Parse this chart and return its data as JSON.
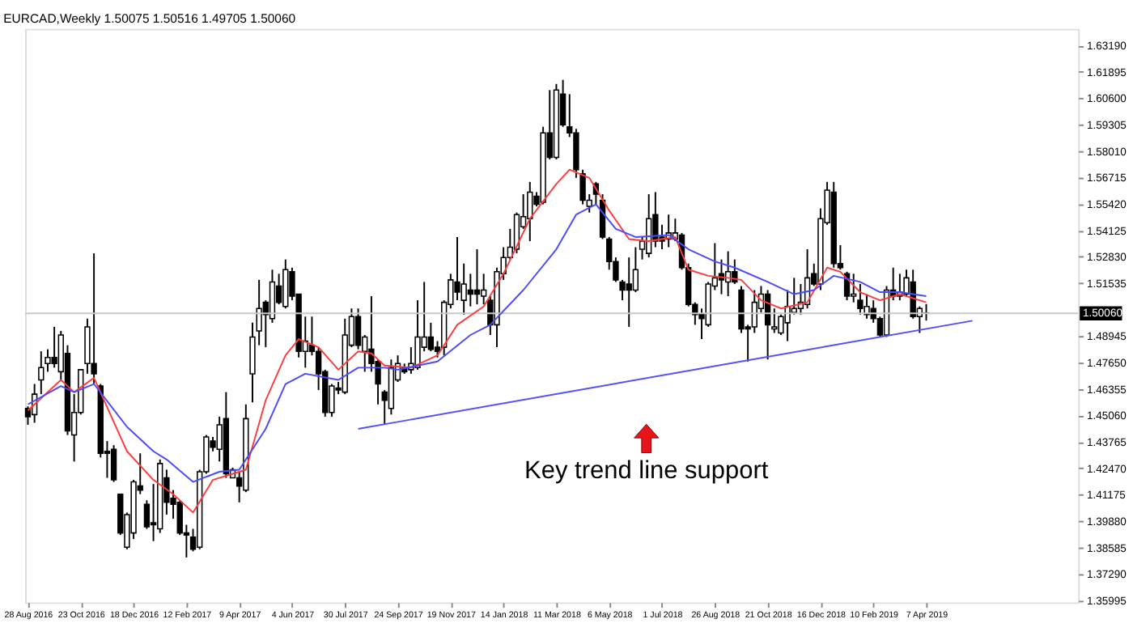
{
  "chart_data": {
    "type": "candlestick",
    "title": "EURCAD,Weekly  1.50075 1.50516 1.49705 1.50060",
    "x": [
      "2016-08-28",
      "2016-09-04",
      "2016-09-11",
      "2016-09-18",
      "2016-09-25",
      "2016-10-02",
      "2016-10-09",
      "2016-10-16",
      "2016-10-23",
      "2016-10-30",
      "2016-11-06",
      "2016-11-13",
      "2016-11-20",
      "2016-11-27",
      "2016-12-04",
      "2016-12-11",
      "2016-12-18",
      "2016-12-25",
      "2017-01-01",
      "2017-01-08",
      "2017-01-15",
      "2017-01-22",
      "2017-01-29",
      "2017-02-05",
      "2017-02-12",
      "2017-02-19",
      "2017-02-26",
      "2017-03-05",
      "2017-03-12",
      "2017-03-19",
      "2017-03-26",
      "2017-04-02",
      "2017-04-09",
      "2017-04-16",
      "2017-04-23",
      "2017-04-30",
      "2017-05-07",
      "2017-05-14",
      "2017-05-21",
      "2017-05-28",
      "2017-06-04",
      "2017-06-11",
      "2017-06-18",
      "2017-06-25",
      "2017-07-02",
      "2017-07-09",
      "2017-07-16",
      "2017-07-23",
      "2017-07-30",
      "2017-08-06",
      "2017-08-13",
      "2017-08-20",
      "2017-08-27",
      "2017-09-03",
      "2017-09-10",
      "2017-09-17",
      "2017-09-24",
      "2017-10-01",
      "2017-10-08",
      "2017-10-15",
      "2017-10-22",
      "2017-10-29",
      "2017-11-05",
      "2017-11-12",
      "2017-11-19",
      "2017-11-26",
      "2017-12-03",
      "2017-12-10",
      "2017-12-17",
      "2017-12-24",
      "2017-12-31",
      "2018-01-07",
      "2018-01-14",
      "2018-01-21",
      "2018-01-28",
      "2018-02-04",
      "2018-02-11",
      "2018-02-18",
      "2018-02-25",
      "2018-03-04",
      "2018-03-11",
      "2018-03-18",
      "2018-03-25",
      "2018-04-01",
      "2018-04-08",
      "2018-04-15",
      "2018-04-22",
      "2018-04-29",
      "2018-05-06",
      "2018-05-13",
      "2018-05-20",
      "2018-05-27",
      "2018-06-03",
      "2018-06-10",
      "2018-06-17",
      "2018-06-24",
      "2018-07-01",
      "2018-07-08",
      "2018-07-15",
      "2018-07-22",
      "2018-07-29",
      "2018-08-05",
      "2018-08-12",
      "2018-08-19",
      "2018-08-26",
      "2018-09-02",
      "2018-09-09",
      "2018-09-16",
      "2018-09-23",
      "2018-09-30",
      "2018-10-07",
      "2018-10-14",
      "2018-10-21",
      "2018-10-28",
      "2018-11-04",
      "2018-11-11",
      "2018-11-18",
      "2018-11-25",
      "2018-12-02",
      "2018-12-09",
      "2018-12-16",
      "2018-12-23",
      "2018-12-30",
      "2019-01-06",
      "2019-01-13",
      "2019-01-20",
      "2019-01-27",
      "2019-02-03",
      "2019-02-10",
      "2019-02-17",
      "2019-02-24",
      "2019-03-03",
      "2019-03-10",
      "2019-03-17",
      "2019-03-24",
      "2019-03-31",
      "2019-04-07"
    ],
    "ohlc": [
      [
        1.454,
        1.455,
        1.446,
        1.45
      ],
      [
        1.451,
        1.466,
        1.447,
        1.461
      ],
      [
        1.468,
        1.482,
        1.461,
        1.474
      ],
      [
        1.476,
        1.483,
        1.472,
        1.479
      ],
      [
        1.479,
        1.494,
        1.474,
        1.476
      ],
      [
        1.472,
        1.492,
        1.468,
        1.49
      ],
      [
        1.481,
        1.485,
        1.441,
        1.443
      ],
      [
        1.441,
        1.461,
        1.428,
        1.452
      ],
      [
        1.452,
        1.473,
        1.451,
        1.473
      ],
      [
        1.476,
        1.498,
        1.471,
        1.494
      ],
      [
        1.476,
        1.53,
        1.466,
        1.471
      ],
      [
        1.465,
        1.466,
        1.43,
        1.432
      ],
      [
        1.433,
        1.438,
        1.42,
        1.432
      ],
      [
        1.434,
        1.436,
        1.418,
        1.419
      ],
      [
        1.412,
        1.412,
        1.392,
        1.393
      ],
      [
        1.386,
        1.403,
        1.385,
        1.402
      ],
      [
        1.393,
        1.419,
        1.39,
        1.418
      ],
      [
        1.416,
        1.432,
        1.412,
        1.414
      ],
      [
        1.407,
        1.409,
        1.395,
        1.396
      ],
      [
        1.398,
        1.417,
        1.389,
        1.397
      ],
      [
        1.395,
        1.429,
        1.393,
        1.427
      ],
      [
        1.42,
        1.424,
        1.402,
        1.408
      ],
      [
        1.41,
        1.414,
        1.4,
        1.407
      ],
      [
        1.408,
        1.409,
        1.392,
        1.393
      ],
      [
        1.393,
        1.397,
        1.381,
        1.392
      ],
      [
        1.391,
        1.395,
        1.384,
        1.385
      ],
      [
        1.386,
        1.424,
        1.385,
        1.423
      ],
      [
        1.423,
        1.441,
        1.422,
        1.44
      ],
      [
        1.438,
        1.44,
        1.433,
        1.435
      ],
      [
        1.434,
        1.45,
        1.428,
        1.446
      ],
      [
        1.449,
        1.462,
        1.42,
        1.422
      ],
      [
        1.42,
        1.425,
        1.42,
        1.424
      ],
      [
        1.42,
        1.423,
        1.408,
        1.416
      ],
      [
        1.414,
        1.456,
        1.413,
        1.449
      ],
      [
        1.471,
        1.496,
        1.457,
        1.489
      ],
      [
        1.492,
        1.517,
        1.485,
        1.503
      ],
      [
        1.506,
        1.507,
        1.484,
        1.5
      ],
      [
        1.498,
        1.522,
        1.496,
        1.516
      ],
      [
        1.514,
        1.52,
        1.505,
        1.506
      ],
      [
        1.504,
        1.527,
        1.503,
        1.522
      ],
      [
        1.521,
        1.523,
        1.507,
        1.509
      ],
      [
        1.51,
        1.51,
        1.479,
        1.482
      ],
      [
        1.482,
        1.499,
        1.474,
        1.487
      ],
      [
        1.485,
        1.499,
        1.48,
        1.482
      ],
      [
        1.482,
        1.484,
        1.463,
        1.471
      ],
      [
        1.472,
        1.473,
        1.45,
        1.452
      ],
      [
        1.452,
        1.466,
        1.45,
        1.465
      ],
      [
        1.464,
        1.467,
        1.461,
        1.463
      ],
      [
        1.462,
        1.498,
        1.461,
        1.49
      ],
      [
        1.485,
        1.503,
        1.484,
        1.499
      ],
      [
        1.499,
        1.503,
        1.483,
        1.485
      ],
      [
        1.482,
        1.49,
        1.472,
        1.489
      ],
      [
        1.483,
        1.509,
        1.472,
        1.476
      ],
      [
        1.477,
        1.478,
        1.456,
        1.466
      ],
      [
        1.462,
        1.463,
        1.446,
        1.458
      ],
      [
        1.454,
        1.478,
        1.451,
        1.474
      ],
      [
        1.468,
        1.48,
        1.467,
        1.476
      ],
      [
        1.474,
        1.476,
        1.471,
        1.472
      ],
      [
        1.473,
        1.484,
        1.471,
        1.476
      ],
      [
        1.474,
        1.507,
        1.473,
        1.489
      ],
      [
        1.484,
        1.516,
        1.482,
        1.489
      ],
      [
        1.489,
        1.496,
        1.482,
        1.483
      ],
      [
        1.484,
        1.487,
        1.479,
        1.482
      ],
      [
        1.484,
        1.507,
        1.48,
        1.506
      ],
      [
        1.505,
        1.52,
        1.503,
        1.517
      ],
      [
        1.516,
        1.538,
        1.507,
        1.511
      ],
      [
        1.507,
        1.525,
        1.5,
        1.515
      ],
      [
        1.512,
        1.52,
        1.504,
        1.51
      ],
      [
        1.512,
        1.532,
        1.505,
        1.51
      ],
      [
        1.509,
        1.52,
        1.505,
        1.512
      ],
      [
        1.507,
        1.509,
        1.49,
        1.495
      ],
      [
        1.495,
        1.523,
        1.484,
        1.521
      ],
      [
        1.52,
        1.533,
        1.517,
        1.528
      ],
      [
        1.528,
        1.542,
        1.527,
        1.533
      ],
      [
        1.532,
        1.55,
        1.53,
        1.549
      ],
      [
        1.543,
        1.559,
        1.542,
        1.548
      ],
      [
        1.547,
        1.565,
        1.536,
        1.56
      ],
      [
        1.558,
        1.56,
        1.553,
        1.554
      ],
      [
        1.555,
        1.592,
        1.554,
        1.589
      ],
      [
        1.589,
        1.61,
        1.576,
        1.577
      ],
      [
        1.577,
        1.613,
        1.576,
        1.61
      ],
      [
        1.608,
        1.615,
        1.592,
        1.593
      ],
      [
        1.592,
        1.608,
        1.587,
        1.589
      ],
      [
        1.589,
        1.591,
        1.567,
        1.571
      ],
      [
        1.569,
        1.571,
        1.554,
        1.556
      ],
      [
        1.553,
        1.559,
        1.55,
        1.556
      ],
      [
        1.564,
        1.565,
        1.554,
        1.559
      ],
      [
        1.556,
        1.559,
        1.537,
        1.538
      ],
      [
        1.537,
        1.538,
        1.522,
        1.526
      ],
      [
        1.526,
        1.528,
        1.516,
        1.517
      ],
      [
        1.516,
        1.517,
        1.507,
        1.512
      ],
      [
        1.515,
        1.528,
        1.494,
        1.512
      ],
      [
        1.512,
        1.533,
        1.511,
        1.522
      ],
      [
        1.532,
        1.538,
        1.527,
        1.536
      ],
      [
        1.53,
        1.559,
        1.528,
        1.547
      ],
      [
        1.549,
        1.56,
        1.533,
        1.536
      ],
      [
        1.538,
        1.544,
        1.532,
        1.536
      ],
      [
        1.537,
        1.549,
        1.533,
        1.54
      ],
      [
        1.537,
        1.547,
        1.536,
        1.54
      ],
      [
        1.539,
        1.54,
        1.522,
        1.523
      ],
      [
        1.523,
        1.525,
        1.504,
        1.505
      ],
      [
        1.505,
        1.506,
        1.495,
        1.5
      ],
      [
        1.5,
        1.503,
        1.488,
        1.498
      ],
      [
        1.495,
        1.516,
        1.494,
        1.515
      ],
      [
        1.514,
        1.535,
        1.512,
        1.518
      ],
      [
        1.52,
        1.527,
        1.51,
        1.517
      ],
      [
        1.516,
        1.531,
        1.509,
        1.521
      ],
      [
        1.521,
        1.527,
        1.515,
        1.516
      ],
      [
        1.512,
        1.514,
        1.491,
        1.493
      ],
      [
        1.494,
        1.495,
        1.477,
        1.493
      ],
      [
        1.494,
        1.512,
        1.491,
        1.506
      ],
      [
        1.503,
        1.514,
        1.501,
        1.51
      ],
      [
        1.51,
        1.512,
        1.478,
        1.495
      ],
      [
        1.493,
        1.503,
        1.491,
        1.494
      ],
      [
        1.491,
        1.5,
        1.49,
        1.499
      ],
      [
        1.496,
        1.512,
        1.487,
        1.504
      ],
      [
        1.501,
        1.518,
        1.5,
        1.503
      ],
      [
        1.503,
        1.515,
        1.5,
        1.506
      ],
      [
        1.505,
        1.532,
        1.503,
        1.518
      ],
      [
        1.52,
        1.525,
        1.514,
        1.515
      ],
      [
        1.515,
        1.552,
        1.512,
        1.547
      ],
      [
        1.545,
        1.565,
        1.544,
        1.561
      ],
      [
        1.56,
        1.565,
        1.523,
        1.525
      ],
      [
        1.525,
        1.534,
        1.522,
        1.523
      ],
      [
        1.52,
        1.521,
        1.507,
        1.509
      ],
      [
        1.509,
        1.52,
        1.506,
        1.51
      ],
      [
        1.507,
        1.515,
        1.5,
        1.503
      ],
      [
        1.5,
        1.51,
        1.498,
        1.504
      ],
      [
        1.503,
        1.507,
        1.496,
        1.498
      ],
      [
        1.498,
        1.499,
        1.489,
        1.49
      ],
      [
        1.49,
        1.514,
        1.489,
        1.512
      ],
      [
        1.512,
        1.523,
        1.507,
        1.509
      ],
      [
        1.509,
        1.52,
        1.507,
        1.511
      ],
      [
        1.51,
        1.522,
        1.509,
        1.518
      ],
      [
        1.516,
        1.522,
        1.498,
        1.499
      ],
      [
        1.499,
        1.504,
        1.491,
        1.503
      ],
      [
        1.50075,
        1.50516,
        1.49705,
        1.5006
      ]
    ],
    "series": [
      {
        "type": "line",
        "color": "#ff3b3b",
        "x": [
          "2016-08-28",
          "2016-10-02",
          "2016-10-16",
          "2016-11-06",
          "2016-12-11",
          "2017-01-08",
          "2017-01-29",
          "2017-02-19",
          "2017-03-12",
          "2017-04-02",
          "2017-04-16",
          "2017-05-07",
          "2017-05-28",
          "2017-06-11",
          "2017-07-02",
          "2017-07-23",
          "2017-08-13",
          "2017-08-27",
          "2017-09-10",
          "2017-10-08",
          "2017-11-05",
          "2017-11-26",
          "2017-12-24",
          "2018-01-14",
          "2018-02-11",
          "2018-03-11",
          "2018-03-25",
          "2018-04-15",
          "2018-05-06",
          "2018-05-27",
          "2018-06-17",
          "2018-07-15",
          "2018-07-29",
          "2018-08-19",
          "2018-09-09",
          "2018-09-23",
          "2018-10-14",
          "2018-11-04",
          "2018-12-02",
          "2018-12-23",
          "2019-01-06",
          "2019-01-27",
          "2019-02-17",
          "2019-03-10",
          "2019-04-07"
        ],
        "values": [
          1.453,
          1.468,
          1.462,
          1.469,
          1.433,
          1.419,
          1.412,
          1.403,
          1.419,
          1.422,
          1.424,
          1.458,
          1.48,
          1.488,
          1.484,
          1.473,
          1.482,
          1.481,
          1.475,
          1.474,
          1.48,
          1.495,
          1.504,
          1.52,
          1.547,
          1.564,
          1.571,
          1.567,
          1.551,
          1.537,
          1.536,
          1.538,
          1.522,
          1.519,
          1.518,
          1.517,
          1.507,
          1.503,
          1.506,
          1.523,
          1.521,
          1.511,
          1.507,
          1.51,
          1.506
        ]
      },
      {
        "type": "line",
        "color": "#4a4aff",
        "x": [
          "2016-08-28",
          "2016-10-02",
          "2016-10-16",
          "2016-11-06",
          "2016-12-11",
          "2017-01-08",
          "2017-01-22",
          "2017-02-19",
          "2017-03-19",
          "2017-04-09",
          "2017-05-07",
          "2017-05-28",
          "2017-06-18",
          "2017-07-23",
          "2017-08-13",
          "2017-09-10",
          "2017-09-24",
          "2017-11-05",
          "2017-12-10",
          "2017-12-31",
          "2018-02-04",
          "2018-03-11",
          "2018-04-01",
          "2018-04-22",
          "2018-05-13",
          "2018-06-03",
          "2018-07-08",
          "2018-07-29",
          "2018-08-26",
          "2018-09-16",
          "2018-10-21",
          "2018-11-18",
          "2018-12-09",
          "2018-12-30",
          "2019-01-27",
          "2019-02-17",
          "2019-03-10",
          "2019-04-07"
        ],
        "values": [
          1.456,
          1.465,
          1.462,
          1.466,
          1.445,
          1.433,
          1.429,
          1.418,
          1.423,
          1.424,
          1.444,
          1.466,
          1.471,
          1.468,
          1.474,
          1.474,
          1.473,
          1.477,
          1.49,
          1.495,
          1.512,
          1.532,
          1.549,
          1.554,
          1.542,
          1.538,
          1.539,
          1.532,
          1.526,
          1.523,
          1.516,
          1.51,
          1.512,
          1.519,
          1.516,
          1.511,
          1.511,
          1.509
        ]
      },
      {
        "type": "line",
        "color": "#5050ff",
        "x": [
          "2017-08-13",
          "2019-05-26"
        ],
        "values": [
          1.444,
          1.497
        ]
      }
    ],
    "xlim": [
      "2016-08-25",
      "2019-09-15"
    ],
    "xticks": [
      {
        "value": "2016-08-28",
        "label": "28 Aug 2016"
      },
      {
        "value": "2016-10-23",
        "label": "23 Oct 2016"
      },
      {
        "value": "2016-12-18",
        "label": "18 Dec 2016"
      },
      {
        "value": "2017-02-12",
        "label": "12 Feb 2017"
      },
      {
        "value": "2017-04-09",
        "label": "9 Apr 2017"
      },
      {
        "value": "2017-06-04",
        "label": "4 Jun 2017"
      },
      {
        "value": "2017-07-30",
        "label": "30 Jul 2017"
      },
      {
        "value": "2017-09-24",
        "label": "24 Sep 2017"
      },
      {
        "value": "2017-11-19",
        "label": "19 Nov 2017"
      },
      {
        "value": "2018-01-14",
        "label": "14 Jan 2018"
      },
      {
        "value": "2018-03-11",
        "label": "11 Mar 2018"
      },
      {
        "value": "2018-05-06",
        "label": "6 May 2018"
      },
      {
        "value": "2018-07-01",
        "label": "1 Jul 2018"
      },
      {
        "value": "2018-08-26",
        "label": "26 Aug 2018"
      },
      {
        "value": "2018-10-21",
        "label": "21 Oct 2018"
      },
      {
        "value": "2018-12-16",
        "label": "16 Dec 2018"
      },
      {
        "value": "2019-02-10",
        "label": "10 Feb 2019"
      },
      {
        "value": "2019-04-07",
        "label": "7 Apr 2019"
      }
    ],
    "ylim": [
      1.359,
      1.64
    ],
    "yticks": [
      {
        "value": 1.35995,
        "label": "1.35995"
      },
      {
        "value": 1.3729,
        "label": "1.37290"
      },
      {
        "value": 1.38585,
        "label": "1.38585"
      },
      {
        "value": 1.3988,
        "label": "1.39880"
      },
      {
        "value": 1.41175,
        "label": "1.41175"
      },
      {
        "value": 1.4247,
        "label": "1.42470"
      },
      {
        "value": 1.43765,
        "label": "1.43765"
      },
      {
        "value": 1.4506,
        "label": "1.45060"
      },
      {
        "value": 1.46355,
        "label": "1.46355"
      },
      {
        "value": 1.4765,
        "label": "1.47650"
      },
      {
        "value": 1.48945,
        "label": "1.48945"
      },
      {
        "value": 1.51535,
        "label": "1.51535"
      },
      {
        "value": 1.5283,
        "label": "1.52830"
      },
      {
        "value": 1.54125,
        "label": "1.54125"
      },
      {
        "value": 1.5542,
        "label": "1.55420"
      },
      {
        "value": 1.56715,
        "label": "1.56715"
      },
      {
        "value": 1.5801,
        "label": "1.58010"
      },
      {
        "value": 1.59305,
        "label": "1.59305"
      },
      {
        "value": 1.606,
        "label": "1.60600"
      },
      {
        "value": 1.61895,
        "label": "1.61895"
      },
      {
        "value": 1.6319,
        "label": "1.63190"
      }
    ],
    "ref_lines": [
      {
        "axis": "y",
        "value": 1.5006,
        "label": "1.50060",
        "color": "#c8c8c8"
      }
    ],
    "annotations": [
      "Key trend line support"
    ]
  }
}
